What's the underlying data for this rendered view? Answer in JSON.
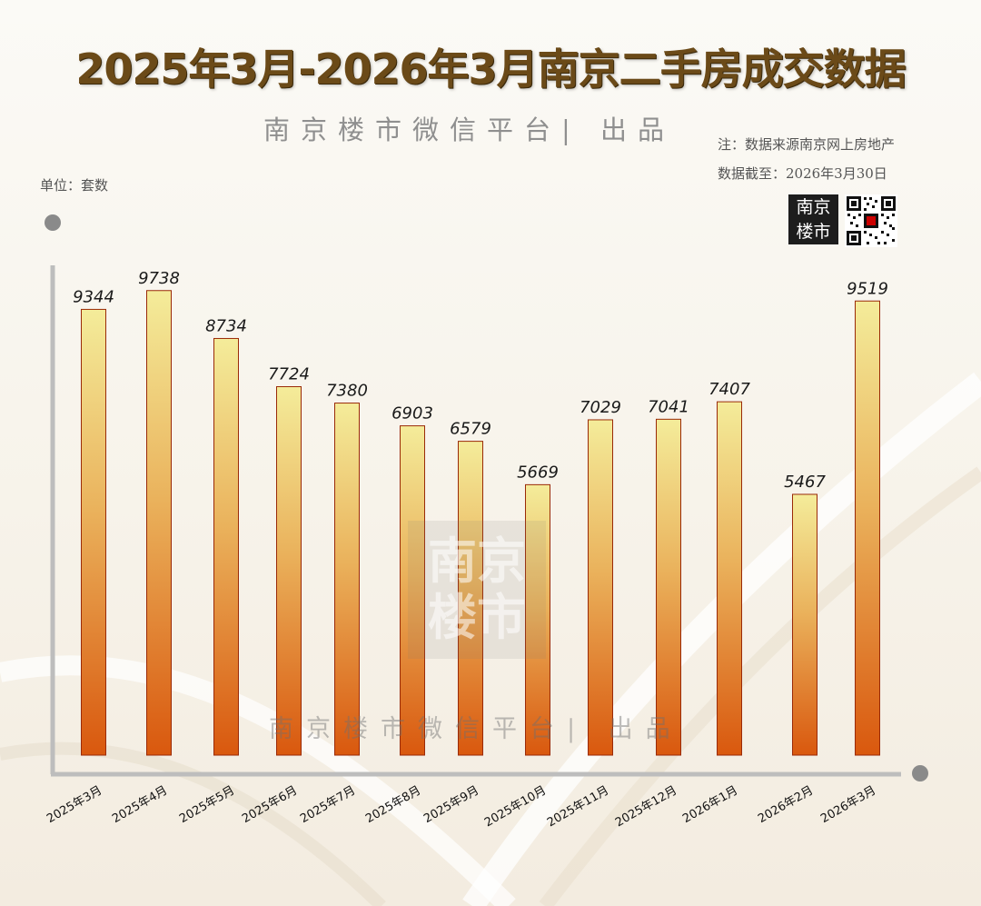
{
  "header": {
    "title": "2025年3月-2026年3月南京二手房成交数据",
    "subtitle": "南京楼市微信平台| 出品",
    "note_source": "注：数据来源南京网上房地产",
    "note_date": "数据截至：2026年3月30日",
    "unit_label": "单位：套数"
  },
  "branding": {
    "logo_text_line1": "南京",
    "logo_text_line2": "楼市",
    "watermark_line1": "南京",
    "watermark_line2": "楼市",
    "watermark_text": "南京楼市微信平台| 出品"
  },
  "colors": {
    "title": "#6b4a18",
    "bar_top": "#f4ec9a",
    "bar_mid": "#eab25c",
    "bar_bottom": "#d9580e",
    "bar_stroke": "#9a2a08",
    "axis": "#bdbdbd"
  },
  "chart_data": {
    "type": "bar",
    "categories": [
      "2025年3月",
      "2025年4月",
      "2025年5月",
      "2025年6月",
      "2025年7月",
      "2025年8月",
      "2025年9月",
      "2025年10月",
      "2025年11月",
      "2025年12月",
      "2026年1月",
      "2026年2月",
      "2026年3月"
    ],
    "values": [
      9344,
      9738,
      8734,
      7724,
      7380,
      6903,
      6579,
      5669,
      7029,
      7041,
      7407,
      5467,
      9519
    ],
    "ylabel": "单位：套数",
    "data_labels": true,
    "grid": false,
    "legend": "none"
  }
}
